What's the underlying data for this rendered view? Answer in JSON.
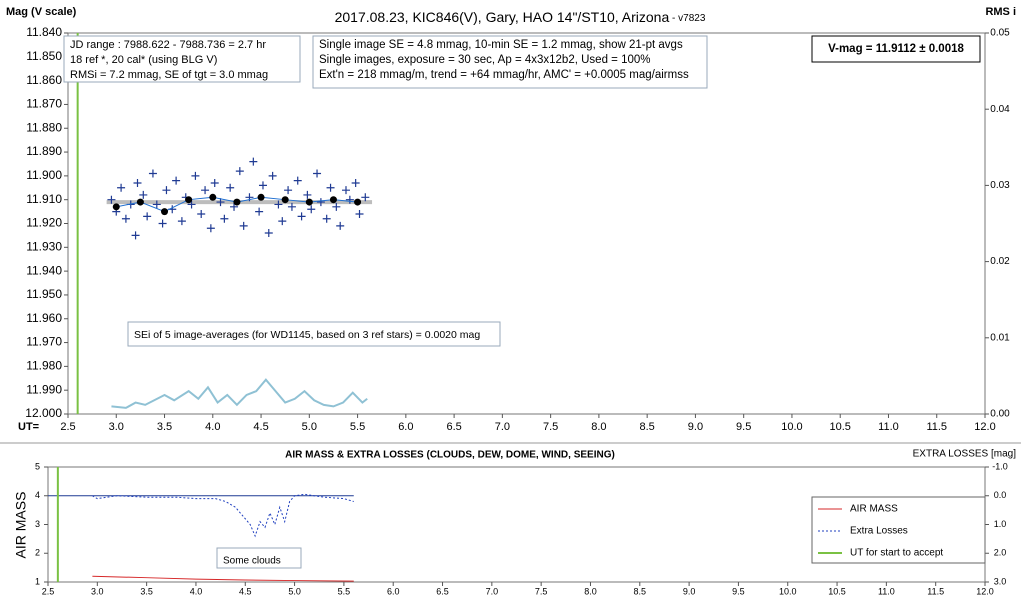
{
  "chart_data": [
    {
      "type": "scatter",
      "title": "2017.08.23,  KIC846(V),  Gary,  HAO  14\"/ST10, Arizona",
      "subtitle": " - v7823",
      "ylabel": "Mag (V scale)",
      "y2label": "RMS i",
      "xlabel": "UT=",
      "xlim": [
        2.5,
        12.0
      ],
      "xticks": [
        2.5,
        {
          "value": 3.0,
          "label": "3.0"
        },
        3.5,
        {
          "value": 4.0,
          "label": "4.0"
        },
        4.5,
        {
          "value": 5.0,
          "label": "5.0"
        },
        5.5,
        {
          "value": 6.0,
          "label": "6.0"
        },
        6.5,
        {
          "value": 7.0,
          "label": "7.0"
        },
        7.5,
        {
          "value": 8.0,
          "label": "8.0"
        },
        8.5,
        {
          "value": 9.0,
          "label": "9.0"
        },
        9.5,
        {
          "value": 10.0,
          "label": "10.0"
        },
        10.5,
        {
          "value": 11.0,
          "label": "11.0"
        },
        11.5,
        {
          "value": 12.0,
          "label": "12.0"
        }
      ],
      "ylim": [
        12.0,
        11.84
      ],
      "yticks": [
        {
          "value": 11.84,
          "label": "11.840"
        },
        {
          "value": 11.85,
          "label": "11.850"
        },
        {
          "value": 11.86,
          "label": "11.860"
        },
        {
          "value": 11.87,
          "label": "11.870"
        },
        {
          "value": 11.88,
          "label": "11.880"
        },
        {
          "value": 11.89,
          "label": "11.890"
        },
        {
          "value": 11.9,
          "label": "11.900"
        },
        {
          "value": 11.91,
          "label": "11.910"
        },
        {
          "value": 11.92,
          "label": "11.920"
        },
        {
          "value": 11.93,
          "label": "11.930"
        },
        {
          "value": 11.94,
          "label": "11.940"
        },
        {
          "value": 11.95,
          "label": "11.950"
        },
        {
          "value": 11.96,
          "label": "11.960"
        },
        {
          "value": 11.97,
          "label": "11.970"
        },
        {
          "value": 11.98,
          "label": "11.980"
        },
        {
          "value": 11.99,
          "label": "11.990"
        },
        {
          "value": 12.0,
          "label": "12.000"
        }
      ],
      "y2lim": [
        0,
        0.05
      ],
      "y2ticks": [
        {
          "value": 0,
          "label": "0.00"
        },
        {
          "value": 0.01,
          "label": "0.01"
        },
        {
          "value": 0.02,
          "label": "0.02"
        },
        {
          "value": 0.03,
          "label": "0.03"
        },
        {
          "value": 0.04,
          "label": "0.04"
        },
        {
          "value": 0.05,
          "label": "0.05"
        }
      ],
      "vline": 2.6,
      "vline_color": "#7ac143",
      "series": [
        {
          "color": "#bdbdbd",
          "marker": "none",
          "line": true,
          "width": 4,
          "x": [
            2.9,
            5.65
          ],
          "values": [
            11.911,
            11.911
          ]
        },
        {
          "color": "#1f3a93",
          "marker": "plus",
          "line": false,
          "x": [
            2.95,
            3.0,
            3.05,
            3.1,
            3.15,
            3.2,
            3.22,
            3.28,
            3.32,
            3.38,
            3.42,
            3.48,
            3.52,
            3.58,
            3.62,
            3.68,
            3.72,
            3.78,
            3.82,
            3.88,
            3.92,
            3.98,
            4.02,
            4.08,
            4.12,
            4.18,
            4.22,
            4.28,
            4.32,
            4.38,
            4.42,
            4.48,
            4.52,
            4.58,
            4.62,
            4.68,
            4.72,
            4.78,
            4.82,
            4.88,
            4.92,
            4.98,
            5.02,
            5.08,
            5.12,
            5.18,
            5.22,
            5.28,
            5.32,
            5.38,
            5.42,
            5.48,
            5.52,
            5.58
          ],
          "values": [
            11.91,
            11.915,
            11.905,
            11.918,
            11.912,
            11.925,
            11.903,
            11.908,
            11.917,
            11.899,
            11.912,
            11.92,
            11.906,
            11.914,
            11.902,
            11.919,
            11.909,
            11.912,
            11.9,
            11.916,
            11.906,
            11.922,
            11.903,
            11.911,
            11.918,
            11.905,
            11.913,
            11.898,
            11.921,
            11.909,
            11.894,
            11.915,
            11.904,
            11.924,
            11.9,
            11.912,
            11.919,
            11.906,
            11.913,
            11.902,
            11.917,
            11.908,
            11.914,
            11.899,
            11.911,
            11.918,
            11.905,
            11.913,
            11.921,
            11.906,
            11.91,
            11.903,
            11.916,
            11.909
          ]
        },
        {
          "color": "#000000",
          "marker": "dot",
          "line": true,
          "line_color": "#1f6fd1",
          "x": [
            3.0,
            3.25,
            3.5,
            3.75,
            4.0,
            4.25,
            4.5,
            4.75,
            5.0,
            5.25,
            5.5
          ],
          "values": [
            11.913,
            11.911,
            11.915,
            11.91,
            11.909,
            11.911,
            11.909,
            11.91,
            11.911,
            11.91,
            11.911
          ]
        },
        {
          "color": "#8fc1d4",
          "marker": "none",
          "line": true,
          "axis": "y2",
          "width": 2,
          "x": [
            2.95,
            3.1,
            3.2,
            3.3,
            3.5,
            3.6,
            3.75,
            3.85,
            3.95,
            4.05,
            4.15,
            4.25,
            4.35,
            4.45,
            4.55,
            4.65,
            4.75,
            4.85,
            4.95,
            5.05,
            5.15,
            5.25,
            5.35,
            5.45,
            5.55,
            5.6
          ],
          "values": [
            0.001,
            0.0008,
            0.0015,
            0.0012,
            0.0025,
            0.0018,
            0.003,
            0.002,
            0.0035,
            0.0015,
            0.0025,
            0.0012,
            0.0025,
            0.003,
            0.0045,
            0.003,
            0.0015,
            0.002,
            0.003,
            0.0018,
            0.0012,
            0.001,
            0.0015,
            0.0028,
            0.0015,
            0.002
          ]
        }
      ],
      "annotations": [
        {
          "lines": [
            "JD range : 7988.622 - 7988.736 =  2.7 hr",
            "18 ref *, 20 cal* (using BLG V)",
            "RMSi = 7.2 mmag, SE of tgt = 3.0 mmag"
          ]
        },
        {
          "lines": [
            "Single image SE = 4.8 mmag, 10-min SE = 1.2 mmag, show 21-pt avgs",
            "Single images, exposure = 30 sec, Ap = 4x3x12b2, Used = 100%",
            "Ext'n = 218 mmag/m, trend = +64 mmag/hr, AMC' = +0.0005 mag/airmss"
          ]
        },
        {
          "lines": [
            "V-mag = 11.9112 ± 0.0018"
          ]
        },
        {
          "lines": [
            "SEi of 5 image-averages (for WD1145, based on 3 ref stars) = 0.0020 mag"
          ]
        }
      ]
    },
    {
      "type": "line",
      "title": "AIR MASS & EXTRA LOSSES (CLOUDS, DEW, DOME, WIND, SEEING)",
      "ylabel": "AIR MASS",
      "y2label": "EXTRA LOSSES [mag]",
      "xlim": [
        2.5,
        12.0
      ],
      "xticks": [
        2.5,
        {
          "value": 3.0,
          "label": "3.0"
        },
        3.5,
        {
          "value": 4.0,
          "label": "4.0"
        },
        4.5,
        {
          "value": 5.0,
          "label": "5.0"
        },
        5.5,
        {
          "value": 6.0,
          "label": "6.0"
        },
        6.5,
        {
          "value": 7.0,
          "label": "7.0"
        },
        7.5,
        {
          "value": 8.0,
          "label": "8.0"
        },
        8.5,
        {
          "value": 9.0,
          "label": "9.0"
        },
        9.5,
        {
          "value": 10.0,
          "label": "10.0"
        },
        10.5,
        {
          "value": 11.0,
          "label": "11.0"
        },
        11.5,
        {
          "value": 12.0,
          "label": "12.0"
        }
      ],
      "ylim": [
        1,
        5
      ],
      "yticks": [
        1,
        2,
        3,
        4,
        5
      ],
      "y2lim": [
        3.0,
        -1.0
      ],
      "y2ticks": [
        {
          "value": -1.0,
          "label": "-1.0"
        },
        {
          "value": 0.0,
          "label": "0.0"
        },
        {
          "value": 1.0,
          "label": "1.0"
        },
        {
          "value": 2.0,
          "label": "2.0"
        },
        {
          "value": 3.0,
          "label": "3.0"
        }
      ],
      "legend": "right",
      "series": [
        {
          "color": "#1f3a93",
          "marker": "none",
          "line": true,
          "axis": "y2",
          "x": [
            2.5,
            5.6
          ],
          "values": [
            0,
            0
          ]
        },
        {
          "name": "AIR MASS",
          "color": "#d62728",
          "marker": "none",
          "line": true,
          "x": [
            2.95,
            3.5,
            4.0,
            4.5,
            5.0,
            5.6
          ],
          "values": [
            1.2,
            1.15,
            1.1,
            1.07,
            1.05,
            1.03
          ]
        },
        {
          "name": "Extra Losses",
          "color": "#1f3fbf",
          "marker": "none",
          "line": true,
          "dash": true,
          "axis": "y2",
          "x": [
            2.95,
            3.0,
            3.2,
            3.5,
            3.8,
            4.0,
            4.2,
            4.3,
            4.4,
            4.5,
            4.55,
            4.6,
            4.65,
            4.7,
            4.75,
            4.8,
            4.85,
            4.9,
            4.95,
            5.0,
            5.1,
            5.3,
            5.5,
            5.6
          ],
          "values": [
            0.0,
            0.1,
            0.0,
            0.05,
            0.05,
            0.1,
            0.1,
            0.2,
            0.4,
            0.8,
            1.0,
            1.4,
            0.9,
            1.1,
            0.6,
            1.0,
            0.4,
            0.9,
            0.2,
            0.0,
            -0.05,
            0.05,
            0.1,
            0.2
          ]
        },
        {
          "name": "UT for start to accept",
          "color": "#7ac143",
          "marker": "none",
          "line": true,
          "width": 2,
          "x": [
            2.6,
            2.6
          ],
          "values": [
            1,
            5
          ]
        }
      ],
      "annotations": [
        {
          "lines": [
            "Some clouds"
          ]
        }
      ]
    }
  ]
}
